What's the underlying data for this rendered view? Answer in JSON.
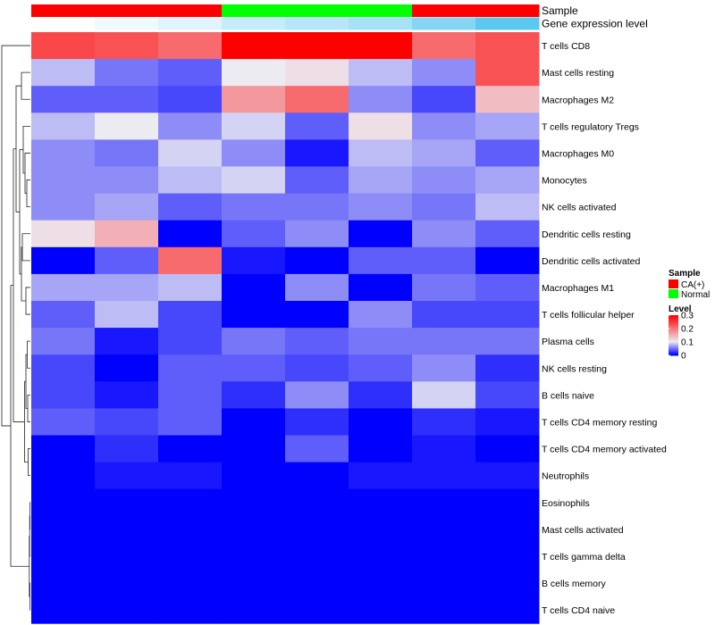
{
  "chart_data": {
    "type": "heatmap",
    "annotations": {
      "sample": {
        "label": "Sample",
        "values": [
          "CA(+)",
          "CA(+)",
          "CA(+)",
          "Normal",
          "Normal",
          "Normal",
          "CA(+)",
          "CA(+)"
        ]
      },
      "gene_expression": {
        "label": "Gene expression level",
        "values": [
          0.0,
          0.1,
          0.2,
          0.35,
          0.45,
          0.55,
          0.75,
          1.0
        ]
      }
    },
    "rows": [
      "T cells CD8",
      "Mast cells resting",
      "Macrophages M2",
      "T cells regulatory  Tregs",
      "Macrophages M0",
      "Monocytes",
      "NK cells activated",
      "Dendritic cells resting",
      "Dendritic cells activated",
      "Macrophages M1",
      "T cells follicular helper",
      "Plasma cells",
      "NK cells resting",
      "B cells naive",
      "T cells CD4 memory resting",
      "T cells CD4 memory activated",
      "Neutrophils",
      "Eosinophils",
      "Mast cells activated",
      "T cells gamma delta",
      "B cells memory",
      "T cells CD4 naive"
    ],
    "values": [
      [
        0.24,
        0.23,
        0.21,
        0.3,
        0.3,
        0.3,
        0.21,
        0.23
      ],
      [
        0.08,
        0.05,
        0.04,
        0.1,
        0.11,
        0.08,
        0.06,
        0.23
      ],
      [
        0.04,
        0.04,
        0.03,
        0.17,
        0.21,
        0.06,
        0.03,
        0.14
      ],
      [
        0.08,
        0.1,
        0.06,
        0.09,
        0.04,
        0.11,
        0.06,
        0.07
      ],
      [
        0.06,
        0.05,
        0.09,
        0.06,
        0.01,
        0.08,
        0.07,
        0.04
      ],
      [
        0.06,
        0.06,
        0.08,
        0.09,
        0.04,
        0.07,
        0.06,
        0.07
      ],
      [
        0.06,
        0.07,
        0.04,
        0.05,
        0.05,
        0.06,
        0.05,
        0.08
      ],
      [
        0.11,
        0.15,
        0.0,
        0.04,
        0.06,
        0.0,
        0.06,
        0.04
      ],
      [
        0.0,
        0.04,
        0.21,
        0.01,
        0.0,
        0.04,
        0.04,
        0.0
      ],
      [
        0.07,
        0.07,
        0.08,
        0.0,
        0.06,
        0.0,
        0.05,
        0.04
      ],
      [
        0.04,
        0.08,
        0.03,
        0.0,
        0.0,
        0.06,
        0.03,
        0.03
      ],
      [
        0.05,
        0.01,
        0.03,
        0.05,
        0.04,
        0.05,
        0.05,
        0.05
      ],
      [
        0.03,
        0.0,
        0.04,
        0.04,
        0.03,
        0.04,
        0.06,
        0.02
      ],
      [
        0.03,
        0.01,
        0.04,
        0.02,
        0.06,
        0.02,
        0.09,
        0.03
      ],
      [
        0.04,
        0.03,
        0.04,
        0.0,
        0.02,
        0.0,
        0.02,
        0.01
      ],
      [
        0.0,
        0.02,
        0.0,
        0.0,
        0.04,
        0.0,
        0.01,
        0.0
      ],
      [
        0.0,
        0.01,
        0.01,
        0.0,
        0.0,
        0.01,
        0.01,
        0.01
      ],
      [
        0,
        0,
        0,
        0,
        0,
        0,
        0,
        0
      ],
      [
        0,
        0,
        0,
        0,
        0,
        0,
        0,
        0
      ],
      [
        0,
        0,
        0,
        0,
        0,
        0,
        0,
        0
      ],
      [
        0,
        0,
        0,
        0,
        0,
        0,
        0,
        0
      ],
      [
        0,
        0,
        0,
        0,
        0,
        0,
        0,
        0
      ]
    ],
    "color_scale": {
      "min": 0,
      "mid": 0.1,
      "max": 0.3,
      "low_color": "#0000FF",
      "mid_color": "#EDEBF2",
      "high_color": "#FF0000"
    },
    "legend": {
      "sample_title": "Sample",
      "sample_entries": [
        {
          "label": "CA(+)",
          "color": "#FF0000"
        },
        {
          "label": "Normal",
          "color": "#00FF00"
        }
      ],
      "level_title": "Level",
      "level_ticks": [
        "0.3",
        "0.2",
        "0.1",
        "0"
      ],
      "level_tick_values": [
        0.3,
        0.2,
        0.1,
        0
      ]
    },
    "gene_expr_colors": {
      "low": "#FFFFFF",
      "high": "#5DC8EF"
    },
    "dendrogram": "row clustering tree on left"
  }
}
